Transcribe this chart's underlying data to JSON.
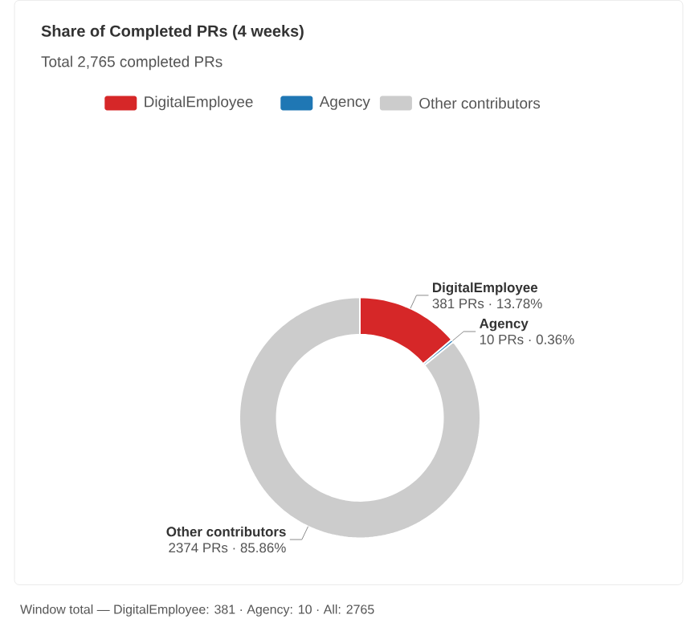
{
  "chart_data": {
    "type": "donut",
    "title": "Share of Completed PRs (4 weeks)",
    "subtitle": "Total 2,765 completed PRs",
    "categories": [
      "DigitalEmployee",
      "Agency",
      "Other contributors"
    ],
    "values": [
      381,
      10,
      2374
    ],
    "colors": [
      "#d62728",
      "#1f77b4",
      "#cccccc"
    ],
    "value_labels": [
      "381 PRs · 13.78%",
      "10 PRs · 0.36%",
      "2374 PRs · 85.86%"
    ],
    "legend": "top",
    "annotations": [
      "Window total — DigitalEmployee: 381 · Agency: 10 · All: 2765"
    ]
  }
}
